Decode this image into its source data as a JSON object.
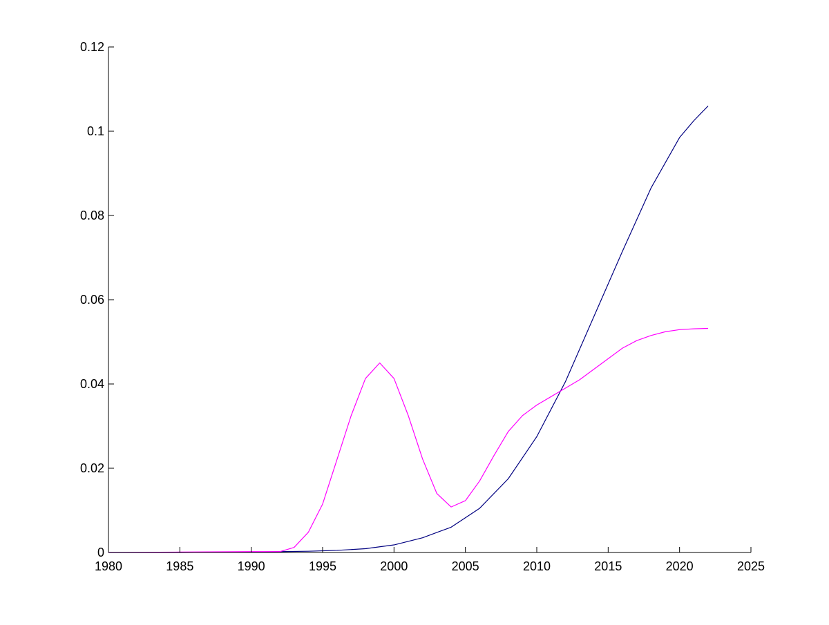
{
  "chart_data": {
    "type": "line",
    "title": "",
    "xlabel": "",
    "ylabel": "",
    "xlim": [
      1980,
      2025
    ],
    "ylim": [
      0,
      0.12
    ],
    "xticks": [
      1980,
      1985,
      1990,
      1995,
      2000,
      2005,
      2010,
      2015,
      2020,
      2025
    ],
    "xtick_labels": [
      "1980",
      "1985",
      "1990",
      "1995",
      "2000",
      "2005",
      "2010",
      "2015",
      "2020",
      "2025"
    ],
    "yticks": [
      0,
      0.02,
      0.04,
      0.06,
      0.08,
      0.1,
      0.12
    ],
    "ytick_labels": [
      "0",
      "0.02",
      "0.04",
      "0.06",
      "0.08",
      "0.1",
      "0.12"
    ],
    "grid": false,
    "legend": "none",
    "axis_color": "#000000",
    "series": [
      {
        "color": "#000080",
        "x": [
          1980,
          1985,
          1990,
          1992,
          1994,
          1996,
          1998,
          2000,
          2002,
          2004,
          2006,
          2008,
          2010,
          2012,
          2014,
          2016,
          2018,
          2020,
          2021,
          2022
        ],
        "y": [
          0,
          0,
          0.0001,
          0.0002,
          0.0003,
          0.0005,
          0.0009,
          0.0018,
          0.0035,
          0.006,
          0.0105,
          0.0175,
          0.0275,
          0.0405,
          0.056,
          0.0715,
          0.0865,
          0.0985,
          0.1025,
          0.106
        ]
      },
      {
        "color": "#ff00ff",
        "x": [
          1980,
          1985,
          1990,
          1992,
          1993,
          1994,
          1995,
          1996,
          1997,
          1998,
          1999,
          2000,
          2001,
          2002,
          2003,
          2004,
          2005,
          2006,
          2007,
          2008,
          2009,
          2010,
          2011,
          2012,
          2013,
          2014,
          2015,
          2016,
          2017,
          2018,
          2019,
          2020,
          2021,
          2022
        ],
        "y": [
          0,
          0.0001,
          0.0002,
          0.0002,
          0.0012,
          0.0048,
          0.0115,
          0.022,
          0.0325,
          0.0413,
          0.045,
          0.0413,
          0.0325,
          0.0222,
          0.014,
          0.0108,
          0.0123,
          0.017,
          0.023,
          0.0287,
          0.0325,
          0.035,
          0.037,
          0.039,
          0.041,
          0.0435,
          0.046,
          0.0485,
          0.0503,
          0.0515,
          0.0524,
          0.0529,
          0.0531,
          0.0532
        ]
      }
    ]
  }
}
